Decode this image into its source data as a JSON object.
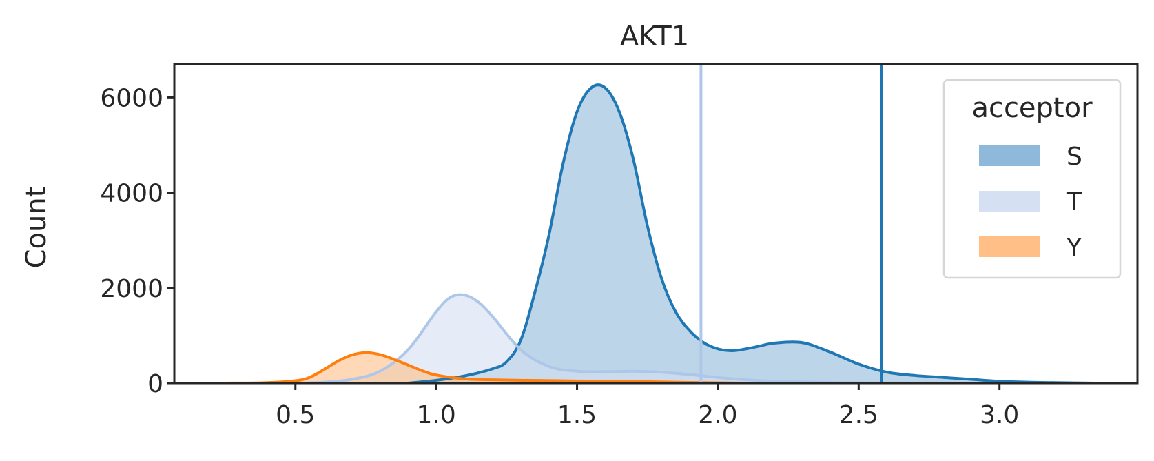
{
  "chart_data": {
    "type": "area",
    "title": "AKT1",
    "xlabel": "",
    "ylabel": "Count",
    "xlim": [
      0.07,
      3.49
    ],
    "ylim": [
      0,
      6700
    ],
    "xticks": [
      0.5,
      1.0,
      1.5,
      2.0,
      2.5,
      3.0
    ],
    "xtick_labels": [
      "0.5",
      "1.0",
      "1.5",
      "2.0",
      "2.5",
      "3.0"
    ],
    "yticks": [
      0,
      2000,
      4000,
      6000
    ],
    "ytick_labels": [
      "0",
      "2000",
      "4000",
      "6000"
    ],
    "grid": false,
    "legend": {
      "title": "acceptor",
      "placement": "top-right",
      "entries": [
        {
          "label": "S",
          "color": "#8fb9da"
        },
        {
          "label": "T",
          "color": "#d5e0f2"
        },
        {
          "label": "Y",
          "color": "#ffbf87"
        }
      ]
    },
    "series": [
      {
        "name": "S",
        "line_color": "#1f77b4",
        "fill_color": "#8fb9da",
        "x": [
          0.9,
          1.0,
          1.1,
          1.2,
          1.25,
          1.3,
          1.35,
          1.4,
          1.45,
          1.5,
          1.55,
          1.6,
          1.65,
          1.7,
          1.75,
          1.8,
          1.85,
          1.9,
          1.95,
          2.0,
          2.05,
          2.1,
          2.15,
          2.2,
          2.3,
          2.4,
          2.5,
          2.6,
          2.7,
          2.8,
          2.9,
          3.0,
          3.1,
          3.2,
          3.34
        ],
        "y": [
          0,
          60,
          150,
          300,
          450,
          900,
          1900,
          3100,
          4600,
          5700,
          6200,
          6200,
          5700,
          4700,
          3300,
          2200,
          1500,
          1100,
          850,
          720,
          680,
          720,
          780,
          840,
          850,
          650,
          400,
          230,
          160,
          120,
          80,
          40,
          20,
          10,
          0
        ]
      },
      {
        "name": "T",
        "line_color": "#aec7e8",
        "fill_color": "#d5e0f2",
        "x": [
          0.5,
          0.6,
          0.7,
          0.8,
          0.9,
          1.0,
          1.05,
          1.1,
          1.15,
          1.2,
          1.3,
          1.4,
          1.5,
          1.6,
          1.7,
          1.8,
          1.9,
          2.0,
          2.1,
          2.2,
          2.4,
          2.6,
          3.0
        ],
        "y": [
          0,
          20,
          80,
          250,
          700,
          1500,
          1800,
          1850,
          1700,
          1400,
          700,
          350,
          250,
          240,
          250,
          230,
          180,
          120,
          70,
          40,
          15,
          5,
          0
        ]
      },
      {
        "name": "Y",
        "line_color": "#ff7f0e",
        "fill_color": "#ffbf87",
        "x": [
          0.25,
          0.4,
          0.5,
          0.55,
          0.6,
          0.65,
          0.7,
          0.75,
          0.8,
          0.85,
          0.9,
          0.95,
          1.0,
          1.1,
          1.2,
          1.3,
          1.5,
          1.7,
          1.9,
          2.1
        ],
        "y": [
          0,
          10,
          50,
          120,
          280,
          460,
          590,
          640,
          600,
          500,
          380,
          260,
          170,
          90,
          70,
          60,
          45,
          35,
          15,
          0
        ]
      }
    ],
    "vertical_lines": [
      {
        "x": 1.94,
        "color": "#aec7e8",
        "series": "T"
      },
      {
        "x": 2.58,
        "color": "#1f77b4",
        "series": "S"
      }
    ]
  }
}
